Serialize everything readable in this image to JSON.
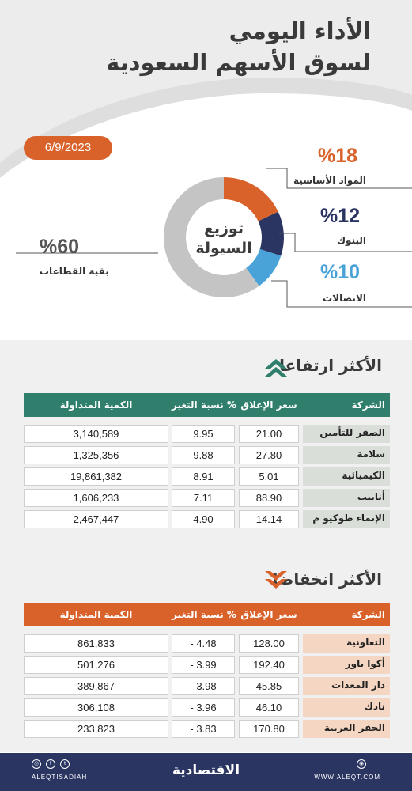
{
  "header": {
    "title_line1": "الأداء اليومي",
    "title_line2": "لسوق الأسهم السعودية",
    "date": "6/9/2023"
  },
  "liquidity": {
    "center_line1": "توزيع",
    "center_line2": "السيولة",
    "segments": [
      {
        "label": "المواد الأساسية",
        "percent": "%18",
        "value": 18,
        "color": "#d9622b"
      },
      {
        "label": "البنوك",
        "percent": "%12",
        "value": 12,
        "color": "#2a3561"
      },
      {
        "label": "الاتصالات",
        "percent": "%10",
        "value": 10,
        "color": "#4aa3d8"
      },
      {
        "label": "بقية القطاعات",
        "percent": "%60",
        "value": 60,
        "color": "#c4c4c4"
      }
    ]
  },
  "gainers": {
    "title": "الأكثر ارتفاعا",
    "header_color": "#2f7f6c",
    "columns": [
      "الشركة",
      "سعر الإغلاق",
      "نسبة التغير %",
      "الكمية المتداولة"
    ],
    "rows": [
      {
        "name": "الصقر للتأمين",
        "close": "21.00",
        "change": "9.95",
        "volume": "3,140,589"
      },
      {
        "name": "سلامة",
        "close": "27.80",
        "change": "9.88",
        "volume": "1,325,356"
      },
      {
        "name": "الكيميائية",
        "close": "5.01",
        "change": "8.91",
        "volume": "19,861,382"
      },
      {
        "name": "أنابيب",
        "close": "88.90",
        "change": "7.11",
        "volume": "1,606,233"
      },
      {
        "name": "الإنماء طوكيو م",
        "close": "14.14",
        "change": "4.90",
        "volume": "2,467,447"
      }
    ]
  },
  "losers": {
    "title": "الأكثر انخفاضا",
    "header_color": "#d9622b",
    "columns": [
      "الشركة",
      "سعر الإغلاق",
      "نسبة التغير %",
      "الكمية المتداولة"
    ],
    "rows": [
      {
        "name": "التعاونية",
        "close": "128.00",
        "change": "- 4.48",
        "volume": "861,833"
      },
      {
        "name": "أكوا باور",
        "close": "192.40",
        "change": "- 3.99",
        "volume": "501,276"
      },
      {
        "name": "دار المعدات",
        "close": "45.85",
        "change": "- 3.98",
        "volume": "389,867"
      },
      {
        "name": "نادك",
        "close": "46.10",
        "change": "- 3.96",
        "volume": "306,108"
      },
      {
        "name": "الحفر العربية",
        "close": "170.80",
        "change": "- 3.83",
        "volume": "233,823"
      }
    ]
  },
  "footer": {
    "handle": "ALEQTISADIAH",
    "logo": "الاقتصادية",
    "website": "WWW.ALEQT.COM"
  }
}
